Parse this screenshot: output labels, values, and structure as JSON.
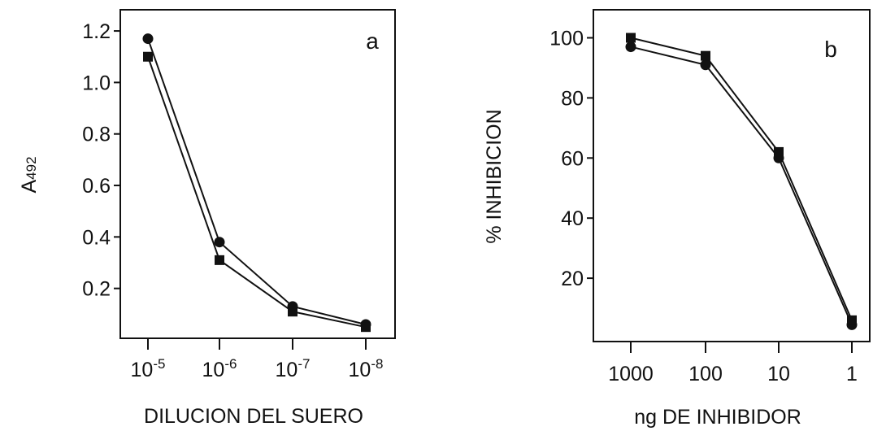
{
  "chart_data": [
    {
      "type": "line",
      "panel_label": "a",
      "xlabel": "DILUCION DEL SUERO",
      "ylabel_main": "A",
      "ylabel_sub": "492",
      "categories": [
        {
          "base": "10",
          "exp": "-5"
        },
        {
          "base": "10",
          "exp": "-6"
        },
        {
          "base": "10",
          "exp": "-7"
        },
        {
          "base": "10",
          "exp": "-8"
        }
      ],
      "yticks": [
        "0.2",
        "0.4",
        "0.6",
        "0.8",
        "1.0",
        "1.2"
      ],
      "ylim": [
        0,
        1.28
      ],
      "series": [
        {
          "marker": "circle",
          "values": [
            1.17,
            0.38,
            0.13,
            0.06
          ]
        },
        {
          "marker": "square",
          "values": [
            1.1,
            0.31,
            0.11,
            0.05
          ]
        }
      ]
    },
    {
      "type": "line",
      "panel_label": "b",
      "xlabel": "ng DE INHIBIDOR",
      "ylabel": "% INHIBICION",
      "categories": [
        "1000",
        "100",
        "10",
        "1"
      ],
      "yticks": [
        "20",
        "40",
        "60",
        "80",
        "100"
      ],
      "ylim": [
        0,
        110
      ],
      "series": [
        {
          "marker": "circle",
          "values": [
            97,
            91,
            60,
            4.5
          ]
        },
        {
          "marker": "square",
          "values": [
            100,
            94,
            62,
            6
          ]
        }
      ]
    }
  ]
}
